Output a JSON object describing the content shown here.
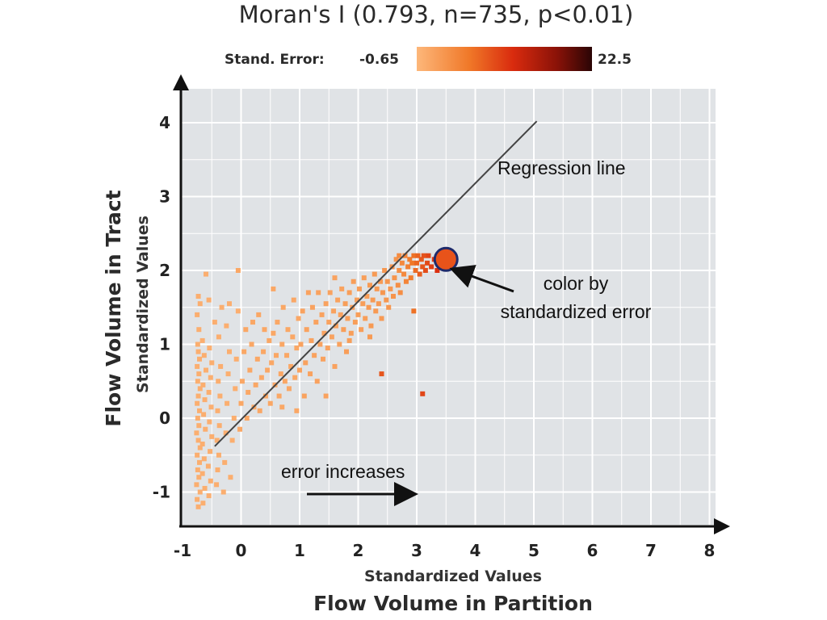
{
  "chart_data": {
    "type": "scatter",
    "title": "Moran's I (0.793, n=735, p<0.01)",
    "legend": {
      "label": "Stand. Error:",
      "min_label": "-0.65",
      "max_label": "22.5",
      "min": -0.65,
      "max": 22.5,
      "colors": [
        "#fdb77a",
        "#f07828",
        "#d92b0e",
        "#8a1208",
        "#2a0505"
      ]
    },
    "xlabel": "Standardized Values",
    "xlabel_main": "Flow Volume in Partition",
    "ylabel": "Standardized Values",
    "ylabel_main": "Flow Volume in Tract",
    "xlim": [
      -1,
      8
    ],
    "ylim": [
      -1.25,
      4.3
    ],
    "x_ticks": [
      -1,
      0,
      1,
      2,
      3,
      4,
      5,
      6,
      7,
      8
    ],
    "y_ticks": [
      -1,
      0,
      1,
      2,
      3,
      4
    ],
    "x_tick_labels": [
      "-1",
      "0",
      "1",
      "2",
      "3",
      "4",
      "5",
      "6",
      "7",
      "8"
    ],
    "y_tick_labels": [
      "-1",
      "0",
      "1",
      "2",
      "3",
      "4"
    ],
    "grid": true,
    "background": "#e0e3e6",
    "regression_line": {
      "x1": -0.45,
      "y1": -0.38,
      "x2": 5.05,
      "y2": 4.02,
      "color": "#444444"
    },
    "annotations": {
      "regression": "Regression line",
      "color_note_line1": "color by",
      "color_note_line2": "standardized error",
      "error_increases": "error increases"
    },
    "highlight_point": {
      "x": 3.5,
      "y": 2.15,
      "error": 8.5,
      "ring_color": "#1e2a6b"
    },
    "points": [
      {
        "x": -0.73,
        "y": -1.2,
        "e": -0.6
      },
      {
        "x": -0.75,
        "y": -1.1,
        "e": -0.6
      },
      {
        "x": -0.7,
        "y": -1.0,
        "e": -0.6
      },
      {
        "x": -0.76,
        "y": -0.9,
        "e": -0.6
      },
      {
        "x": -0.72,
        "y": -0.8,
        "e": -0.6
      },
      {
        "x": -0.74,
        "y": -0.7,
        "e": -0.6
      },
      {
        "x": -0.71,
        "y": -0.6,
        "e": -0.6
      },
      {
        "x": -0.75,
        "y": -0.5,
        "e": -0.6
      },
      {
        "x": -0.7,
        "y": -0.4,
        "e": -0.6
      },
      {
        "x": -0.73,
        "y": -0.3,
        "e": -0.6
      },
      {
        "x": -0.76,
        "y": -0.2,
        "e": -0.6
      },
      {
        "x": -0.72,
        "y": -0.1,
        "e": -0.6
      },
      {
        "x": -0.74,
        "y": 0.0,
        "e": -0.6
      },
      {
        "x": -0.71,
        "y": 0.1,
        "e": -0.6
      },
      {
        "x": -0.75,
        "y": 0.2,
        "e": -0.6
      },
      {
        "x": -0.73,
        "y": 0.3,
        "e": -0.6
      },
      {
        "x": -0.7,
        "y": 0.4,
        "e": -0.6
      },
      {
        "x": -0.74,
        "y": 0.5,
        "e": -0.6
      },
      {
        "x": -0.72,
        "y": 0.6,
        "e": -0.6
      },
      {
        "x": -0.75,
        "y": 0.7,
        "e": -0.6
      },
      {
        "x": -0.71,
        "y": 0.8,
        "e": -0.6
      },
      {
        "x": -0.73,
        "y": 0.9,
        "e": -0.6
      },
      {
        "x": -0.74,
        "y": 1.0,
        "e": -0.6
      },
      {
        "x": -0.72,
        "y": 1.2,
        "e": -0.6
      },
      {
        "x": -0.75,
        "y": 1.4,
        "e": -0.6
      },
      {
        "x": -0.7,
        "y": 1.55,
        "e": -0.6
      },
      {
        "x": -0.73,
        "y": 1.65,
        "e": -0.6
      },
      {
        "x": -0.6,
        "y": 1.95,
        "e": -0.6
      },
      {
        "x": -0.65,
        "y": -1.15,
        "e": -0.6
      },
      {
        "x": -0.62,
        "y": -0.95,
        "e": -0.6
      },
      {
        "x": -0.66,
        "y": -0.75,
        "e": -0.6
      },
      {
        "x": -0.63,
        "y": -0.55,
        "e": -0.6
      },
      {
        "x": -0.66,
        "y": -0.35,
        "e": -0.6
      },
      {
        "x": -0.61,
        "y": -0.15,
        "e": -0.6
      },
      {
        "x": -0.64,
        "y": 0.05,
        "e": -0.6
      },
      {
        "x": -0.62,
        "y": 0.25,
        "e": -0.6
      },
      {
        "x": -0.65,
        "y": 0.45,
        "e": -0.6
      },
      {
        "x": -0.6,
        "y": 0.65,
        "e": -0.6
      },
      {
        "x": -0.63,
        "y": 0.85,
        "e": -0.6
      },
      {
        "x": -0.66,
        "y": 1.05,
        "e": -0.6
      },
      {
        "x": -0.55,
        "y": -1.05,
        "e": -0.6
      },
      {
        "x": -0.52,
        "y": -0.85,
        "e": -0.6
      },
      {
        "x": -0.56,
        "y": -0.65,
        "e": -0.6
      },
      {
        "x": -0.53,
        "y": -0.45,
        "e": -0.6
      },
      {
        "x": -0.5,
        "y": -0.25,
        "e": -0.6
      },
      {
        "x": -0.54,
        "y": -0.05,
        "e": -0.6
      },
      {
        "x": -0.51,
        "y": 0.15,
        "e": -0.6
      },
      {
        "x": -0.55,
        "y": 0.35,
        "e": -0.6
      },
      {
        "x": -0.52,
        "y": 0.55,
        "e": -0.6
      },
      {
        "x": -0.5,
        "y": 0.75,
        "e": -0.6
      },
      {
        "x": -0.54,
        "y": 0.95,
        "e": -0.6
      },
      {
        "x": -0.45,
        "y": 1.3,
        "e": -0.6
      },
      {
        "x": -0.42,
        "y": -0.9,
        "e": -0.6
      },
      {
        "x": -0.4,
        "y": -0.7,
        "e": -0.6
      },
      {
        "x": -0.38,
        "y": -0.5,
        "e": -0.6
      },
      {
        "x": -0.41,
        "y": -0.3,
        "e": -0.6
      },
      {
        "x": -0.37,
        "y": -0.1,
        "e": -0.6
      },
      {
        "x": -0.4,
        "y": 0.1,
        "e": -0.6
      },
      {
        "x": -0.36,
        "y": 0.3,
        "e": -0.6
      },
      {
        "x": -0.39,
        "y": 0.5,
        "e": -0.6
      },
      {
        "x": -0.35,
        "y": 0.7,
        "e": -0.6
      },
      {
        "x": -0.38,
        "y": 1.1,
        "e": -0.6
      },
      {
        "x": -0.33,
        "y": 1.5,
        "e": -0.6
      },
      {
        "x": -0.3,
        "y": -1.0,
        "e": -0.6
      },
      {
        "x": -0.28,
        "y": -0.6,
        "e": -0.6
      },
      {
        "x": -0.26,
        "y": -0.2,
        "e": -0.6
      },
      {
        "x": -0.24,
        "y": 0.2,
        "e": -0.6
      },
      {
        "x": -0.22,
        "y": 0.6,
        "e": -0.6
      },
      {
        "x": -0.2,
        "y": 0.9,
        "e": -0.6
      },
      {
        "x": -0.25,
        "y": 1.25,
        "e": -0.6
      },
      {
        "x": -0.15,
        "y": -0.3,
        "e": -0.6
      },
      {
        "x": -0.12,
        "y": 0.0,
        "e": -0.6
      },
      {
        "x": -0.1,
        "y": 0.4,
        "e": -0.6
      },
      {
        "x": -0.08,
        "y": 0.8,
        "e": -0.6
      },
      {
        "x": -0.05,
        "y": 1.45,
        "e": -0.6
      },
      {
        "x": -0.18,
        "y": -0.8,
        "e": -0.6
      },
      {
        "x": -0.02,
        "y": -0.15,
        "e": -0.5
      },
      {
        "x": 0.0,
        "y": 0.2,
        "e": -0.5
      },
      {
        "x": 0.02,
        "y": 0.5,
        "e": -0.5
      },
      {
        "x": 0.05,
        "y": 0.9,
        "e": -0.5
      },
      {
        "x": 0.08,
        "y": 1.2,
        "e": -0.5
      },
      {
        "x": -0.05,
        "y": 2.0,
        "e": -0.5
      },
      {
        "x": 0.1,
        "y": 0.0,
        "e": -0.5
      },
      {
        "x": 0.12,
        "y": 0.35,
        "e": -0.5
      },
      {
        "x": 0.15,
        "y": 0.65,
        "e": -0.5
      },
      {
        "x": 0.18,
        "y": 1.0,
        "e": -0.5
      },
      {
        "x": 0.2,
        "y": 1.3,
        "e": -0.5
      },
      {
        "x": 0.22,
        "y": 0.15,
        "e": -0.5
      },
      {
        "x": 0.25,
        "y": 0.45,
        "e": -0.5
      },
      {
        "x": 0.28,
        "y": 0.8,
        "e": -0.5
      },
      {
        "x": 0.3,
        "y": 1.4,
        "e": -0.5
      },
      {
        "x": 0.32,
        "y": 0.1,
        "e": -0.5
      },
      {
        "x": 0.35,
        "y": 0.55,
        "e": -0.5
      },
      {
        "x": 0.38,
        "y": 0.9,
        "e": -0.5
      },
      {
        "x": 0.4,
        "y": 1.2,
        "e": -0.5
      },
      {
        "x": 0.42,
        "y": 0.3,
        "e": -0.5
      },
      {
        "x": 0.45,
        "y": 0.65,
        "e": -0.5
      },
      {
        "x": 0.48,
        "y": 1.05,
        "e": -0.5
      },
      {
        "x": 0.5,
        "y": 0.2,
        "e": -0.5
      },
      {
        "x": 0.52,
        "y": 0.75,
        "e": -0.5
      },
      {
        "x": 0.55,
        "y": 1.15,
        "e": -0.5
      },
      {
        "x": 0.58,
        "y": 0.45,
        "e": -0.5
      },
      {
        "x": 0.6,
        "y": 0.85,
        "e": -0.5
      },
      {
        "x": 0.62,
        "y": 1.3,
        "e": -0.5
      },
      {
        "x": 0.65,
        "y": 0.3,
        "e": -0.5
      },
      {
        "x": 0.68,
        "y": 0.6,
        "e": -0.5
      },
      {
        "x": 0.7,
        "y": 1.0,
        "e": -0.5
      },
      {
        "x": 0.72,
        "y": 1.5,
        "e": -0.5
      },
      {
        "x": 0.75,
        "y": 0.5,
        "e": -0.5
      },
      {
        "x": 0.78,
        "y": 0.85,
        "e": -0.5
      },
      {
        "x": 0.8,
        "y": 1.2,
        "e": -0.5
      },
      {
        "x": 0.82,
        "y": 0.4,
        "e": -0.5
      },
      {
        "x": 0.85,
        "y": 0.7,
        "e": -0.5
      },
      {
        "x": 0.88,
        "y": 1.1,
        "e": -0.5
      },
      {
        "x": 0.9,
        "y": 1.6,
        "e": -0.5
      },
      {
        "x": 0.92,
        "y": 0.55,
        "e": -0.5
      },
      {
        "x": 0.95,
        "y": 0.95,
        "e": -0.5
      },
      {
        "x": 0.98,
        "y": 1.35,
        "e": -0.5
      },
      {
        "x": 1.0,
        "y": 0.65,
        "e": -0.4
      },
      {
        "x": 1.02,
        "y": 1.0,
        "e": -0.4
      },
      {
        "x": 1.05,
        "y": 1.45,
        "e": -0.4
      },
      {
        "x": 1.08,
        "y": 0.3,
        "e": -0.4
      },
      {
        "x": 1.1,
        "y": 0.75,
        "e": -0.4
      },
      {
        "x": 1.12,
        "y": 1.2,
        "e": -0.4
      },
      {
        "x": 1.15,
        "y": 1.7,
        "e": -0.4
      },
      {
        "x": 1.18,
        "y": 0.6,
        "e": -0.4
      },
      {
        "x": 1.2,
        "y": 1.05,
        "e": -0.4
      },
      {
        "x": 1.22,
        "y": 1.5,
        "e": -0.4
      },
      {
        "x": 1.25,
        "y": 0.85,
        "e": -0.4
      },
      {
        "x": 1.28,
        "y": 1.3,
        "e": -0.4
      },
      {
        "x": 1.3,
        "y": 0.5,
        "e": -0.4
      },
      {
        "x": 1.32,
        "y": 1.7,
        "e": -0.4
      },
      {
        "x": 1.35,
        "y": 1.0,
        "e": -0.4
      },
      {
        "x": 1.38,
        "y": 1.4,
        "e": -0.4
      },
      {
        "x": 1.4,
        "y": 0.8,
        "e": -0.4
      },
      {
        "x": 1.42,
        "y": 1.15,
        "e": -0.4
      },
      {
        "x": 1.45,
        "y": 1.55,
        "e": -0.4
      },
      {
        "x": 1.48,
        "y": 0.95,
        "e": -0.4
      },
      {
        "x": 1.5,
        "y": 1.3,
        "e": -0.4
      },
      {
        "x": 1.52,
        "y": 1.7,
        "e": -0.4
      },
      {
        "x": 1.55,
        "y": 1.1,
        "e": -0.4
      },
      {
        "x": 1.58,
        "y": 1.45,
        "e": -0.4
      },
      {
        "x": 1.6,
        "y": 0.7,
        "e": -0.4
      },
      {
        "x": 1.62,
        "y": 1.25,
        "e": -0.4
      },
      {
        "x": 1.65,
        "y": 1.6,
        "e": -0.4
      },
      {
        "x": 1.68,
        "y": 1.0,
        "e": -0.4
      },
      {
        "x": 1.7,
        "y": 1.4,
        "e": -0.4
      },
      {
        "x": 1.72,
        "y": 1.75,
        "e": -0.4
      },
      {
        "x": 1.75,
        "y": 1.2,
        "e": -0.3
      },
      {
        "x": 1.78,
        "y": 1.55,
        "e": -0.3
      },
      {
        "x": 1.8,
        "y": 0.9,
        "e": -0.3
      },
      {
        "x": 1.82,
        "y": 1.35,
        "e": -0.3
      },
      {
        "x": 1.85,
        "y": 1.7,
        "e": -0.3
      },
      {
        "x": 1.88,
        "y": 1.15,
        "e": -0.3
      },
      {
        "x": 1.9,
        "y": 1.5,
        "e": -0.3
      },
      {
        "x": 1.92,
        "y": 1.85,
        "e": -0.3
      },
      {
        "x": 1.95,
        "y": 1.3,
        "e": -0.3
      },
      {
        "x": 1.98,
        "y": 1.6,
        "e": -0.3
      },
      {
        "x": 2.0,
        "y": 1.4,
        "e": -0.3
      },
      {
        "x": 2.02,
        "y": 1.75,
        "e": -0.3
      },
      {
        "x": 2.05,
        "y": 1.2,
        "e": -0.3
      },
      {
        "x": 2.08,
        "y": 1.55,
        "e": -0.3
      },
      {
        "x": 2.1,
        "y": 1.9,
        "e": -0.3
      },
      {
        "x": 2.12,
        "y": 1.35,
        "e": -0.3
      },
      {
        "x": 2.15,
        "y": 1.65,
        "e": -0.3
      },
      {
        "x": 2.18,
        "y": 1.5,
        "e": -0.2
      },
      {
        "x": 2.2,
        "y": 1.8,
        "e": -0.2
      },
      {
        "x": 2.22,
        "y": 1.25,
        "e": -0.2
      },
      {
        "x": 2.25,
        "y": 1.6,
        "e": -0.2
      },
      {
        "x": 2.28,
        "y": 1.95,
        "e": -0.2
      },
      {
        "x": 2.3,
        "y": 1.45,
        "e": -0.2
      },
      {
        "x": 2.32,
        "y": 1.75,
        "e": -0.2
      },
      {
        "x": 2.35,
        "y": 1.55,
        "e": -0.2
      },
      {
        "x": 2.38,
        "y": 1.85,
        "e": -0.2
      },
      {
        "x": 2.4,
        "y": 1.35,
        "e": -0.2
      },
      {
        "x": 2.42,
        "y": 1.7,
        "e": -0.1
      },
      {
        "x": 2.45,
        "y": 2.0,
        "e": -0.1
      },
      {
        "x": 2.48,
        "y": 1.6,
        "e": -0.1
      },
      {
        "x": 2.5,
        "y": 1.85,
        "e": -0.1
      },
      {
        "x": 2.52,
        "y": 1.5,
        "e": -0.1
      },
      {
        "x": 2.55,
        "y": 1.75,
        "e": -0.1
      },
      {
        "x": 2.58,
        "y": 2.05,
        "e": 0.0
      },
      {
        "x": 2.6,
        "y": 1.65,
        "e": 0.0
      },
      {
        "x": 2.62,
        "y": 1.9,
        "e": 0.0
      },
      {
        "x": 2.65,
        "y": 2.15,
        "e": 0.0
      },
      {
        "x": 2.68,
        "y": 1.8,
        "e": 0.2
      },
      {
        "x": 2.7,
        "y": 2.0,
        "e": 0.2
      },
      {
        "x": 2.72,
        "y": 1.7,
        "e": 0.2
      },
      {
        "x": 2.75,
        "y": 2.1,
        "e": 0.4
      },
      {
        "x": 2.78,
        "y": 1.95,
        "e": 0.4
      },
      {
        "x": 2.8,
        "y": 2.2,
        "e": 0.6
      },
      {
        "x": 2.82,
        "y": 1.85,
        "e": 0.6
      },
      {
        "x": 2.85,
        "y": 2.05,
        "e": 0.8
      },
      {
        "x": 2.88,
        "y": 2.15,
        "e": 1.0
      },
      {
        "x": 2.9,
        "y": 1.9,
        "e": 1.0
      },
      {
        "x": 2.92,
        "y": 2.1,
        "e": 1.2
      },
      {
        "x": 2.95,
        "y": 2.2,
        "e": 1.5
      },
      {
        "x": 2.98,
        "y": 2.0,
        "e": 1.8
      },
      {
        "x": 3.0,
        "y": 2.1,
        "e": 2.0
      },
      {
        "x": 3.02,
        "y": 2.2,
        "e": 2.2
      },
      {
        "x": 3.05,
        "y": 1.95,
        "e": 2.5
      },
      {
        "x": 3.08,
        "y": 2.15,
        "e": 2.8
      },
      {
        "x": 3.1,
        "y": 2.05,
        "e": 3.0
      },
      {
        "x": 3.12,
        "y": 2.2,
        "e": 3.2
      },
      {
        "x": 3.15,
        "y": 2.0,
        "e": 3.5
      },
      {
        "x": 3.18,
        "y": 2.1,
        "e": 3.8
      },
      {
        "x": 3.2,
        "y": 2.2,
        "e": 4.0
      },
      {
        "x": 3.25,
        "y": 2.05,
        "e": 4.5
      },
      {
        "x": 3.3,
        "y": 2.15,
        "e": 5.0
      },
      {
        "x": 3.35,
        "y": 2.0,
        "e": 5.5
      },
      {
        "x": 3.4,
        "y": 2.1,
        "e": 6.0
      },
      {
        "x": 2.95,
        "y": 1.45,
        "e": 1.5
      },
      {
        "x": 2.4,
        "y": 0.6,
        "e": 3.0
      },
      {
        "x": 3.1,
        "y": 0.33,
        "e": 4.0
      },
      {
        "x": -0.55,
        "y": 1.6,
        "e": -0.6
      },
      {
        "x": 1.45,
        "y": 0.3,
        "e": -0.4
      },
      {
        "x": 0.95,
        "y": 0.1,
        "e": -0.5
      },
      {
        "x": 2.2,
        "y": 1.1,
        "e": -0.2
      },
      {
        "x": 1.85,
        "y": 1.05,
        "e": -0.3
      },
      {
        "x": 0.7,
        "y": 0.15,
        "e": -0.5
      },
      {
        "x": -0.2,
        "y": 1.55,
        "e": -0.6
      },
      {
        "x": 0.55,
        "y": 1.75,
        "e": -0.5
      },
      {
        "x": 1.6,
        "y": 1.9,
        "e": -0.4
      },
      {
        "x": 2.7,
        "y": 2.2,
        "e": 0.3
      }
    ]
  }
}
